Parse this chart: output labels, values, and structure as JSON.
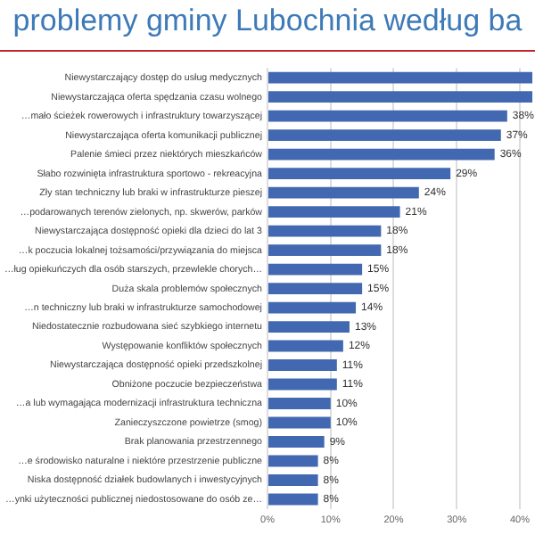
{
  "chart_data": {
    "type": "bar",
    "orientation": "horizontal",
    "title": "problemy gminy Lubochnia według ba",
    "categories": [
      "Niewystarczający dostęp do usług medycznych",
      "Niewystarczająca oferta spędzania czasu wolnego",
      "…mało ścieżek rowerowych i infrastruktury towarzyszącej",
      "Niewystarczająca oferta komunikacji publicznej",
      "Palenie śmieci przez niektórych mieszkańców",
      "Słabo rozwinięta infrastruktura sportowo - rekreacyjna",
      "Zły stan techniczny lub braki w infrastrukturze pieszej",
      "…podarowanych terenów zielonych, np. skwerów, parków",
      "Niewystarczająca dostępność opieki dla dzieci do lat 3",
      "…k poczucia lokalnej tożsamości/przywiązania do miejsca",
      "…ług opiekuńczych dla osób starszych, przewlekle chorych…",
      "Duża skala problemów społecznych",
      "…n techniczny lub braki w infrastrukturze samochodowej",
      "Niedostatecznie rozbudowana sieć szybkiego internetu",
      "Występowanie konfliktów społecznych",
      "Niewystarczająca dostępność opieki przedszkolnej",
      "Obniżone poczucie bezpieczeństwa",
      "…a lub wymagająca modernizacji infrastruktura techniczna",
      "Zanieczyszczone powietrze (smog)",
      "Brak planowania przestrzennego",
      "…e środowisko naturalne i niektóre przestrzenie publiczne",
      "Niska dostępność działek budowlanych i inwestycyjnych",
      "…ynki użyteczności publicznej niedostosowane do osób ze…"
    ],
    "values": [
      42,
      42,
      38,
      37,
      36,
      29,
      24,
      21,
      18,
      18,
      15,
      15,
      14,
      13,
      12,
      11,
      11,
      10,
      10,
      9,
      8,
      8,
      8
    ],
    "value_labels": [
      null,
      null,
      "38%",
      "37%",
      "36%",
      "29%",
      "24%",
      "21%",
      "18%",
      "18%",
      "15%",
      "15%",
      "14%",
      "13%",
      "12%",
      "11%",
      "11%",
      "10%",
      "10%",
      "9%",
      "8%",
      "8%",
      "8%"
    ],
    "color": "#4168b0",
    "xlim": [
      0,
      42
    ],
    "xticks": [
      {
        "value": 0,
        "label": "0%"
      },
      {
        "value": 10,
        "label": "10%"
      },
      {
        "value": 20,
        "label": "20%"
      },
      {
        "value": 30,
        "label": "30%"
      },
      {
        "value": 40,
        "label": "40%"
      }
    ],
    "grid": "x"
  }
}
